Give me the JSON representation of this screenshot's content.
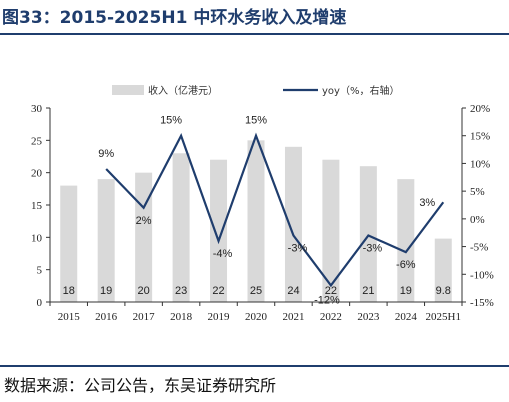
{
  "header": {
    "title": "图33：2015-2025H1 中环水务收入及增速"
  },
  "footer": {
    "source": "数据来源：公司公告，东吴证券研究所"
  },
  "colors": {
    "bar": "#d9d9d9",
    "line": "#1f3d6d",
    "title": "#1f3d6d"
  },
  "chart_data": {
    "type": "bar+line",
    "categories": [
      "2015",
      "2016",
      "2017",
      "2018",
      "2019",
      "2020",
      "2021",
      "2022",
      "2023",
      "2024",
      "2025H1"
    ],
    "series": [
      {
        "name": "收入（亿港元）",
        "type": "bar",
        "axis": "left",
        "values": [
          18,
          19,
          20,
          23,
          22,
          25,
          24,
          22,
          21,
          19,
          9.8
        ],
        "labels": [
          "18",
          "19",
          "20",
          "23",
          "22",
          "25",
          "24",
          "22",
          "21",
          "19",
          "9.8"
        ]
      },
      {
        "name": "yoy（%，右轴）",
        "type": "line",
        "axis": "right",
        "values": [
          null,
          9,
          2,
          15,
          -4,
          15,
          -3,
          -12,
          -3,
          -6,
          3
        ],
        "labels": [
          "",
          "9%",
          "2%",
          "15%",
          "-4%",
          "15%",
          "-3%",
          "-12%",
          "-3%",
          "-6%",
          "3%"
        ]
      }
    ],
    "y_left": {
      "min": 0,
      "max": 30,
      "ticks": [
        "0",
        "5",
        "10",
        "15",
        "20",
        "25",
        "30"
      ]
    },
    "y_right": {
      "min": -15,
      "max": 20,
      "ticks": [
        "-15%",
        "-10%",
        "-5%",
        "0%",
        "5%",
        "10%",
        "15%",
        "20%"
      ]
    },
    "legend": {
      "position": "top"
    },
    "grid": false
  }
}
